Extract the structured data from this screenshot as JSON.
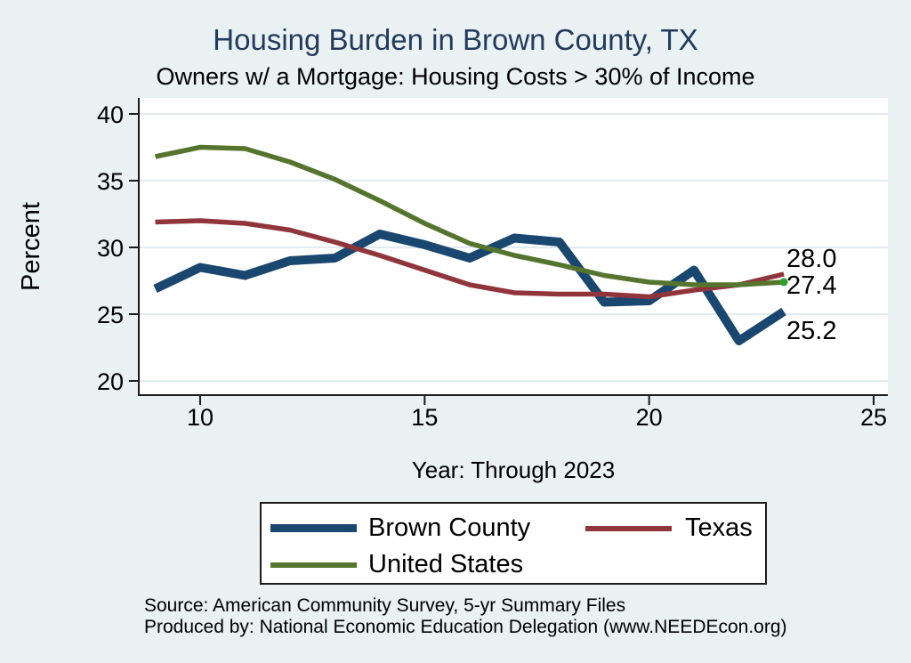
{
  "title": "Housing Burden in Brown County, TX",
  "subtitle": "Owners w/ a Mortgage: Housing Costs > 30% of Income",
  "ylabel": "Percent",
  "xlabel": "Year: Through 2023",
  "source": {
    "line1": "Source: American Community Survey, 5-yr Summary Files",
    "line2": "Produced by: National Economic Education Delegation (www.NEEDEcon.org)"
  },
  "legend": {
    "items": [
      {
        "label": "Brown County",
        "color": "#1a476f"
      },
      {
        "label": "Texas",
        "color": "#90353b"
      },
      {
        "label": "United States",
        "color": "#55752f"
      }
    ]
  },
  "colors": {
    "background": "#e9f1f3",
    "title": "#223a5e",
    "plot_background": "#ffffff",
    "gridline": "#e1ebef",
    "axis": "#1a1a1a",
    "brown_county": "#1a476f",
    "texas": "#90353b",
    "united_states": "#55752f",
    "end_marker": "#2e9e2e",
    "label_text": "#000000"
  },
  "chart_data": {
    "type": "line",
    "title": "Housing Burden in Brown County, TX",
    "subtitle": "Owners w/ a Mortgage: Housing Costs > 30% of Income",
    "xlabel": "Year: Through 2023",
    "ylabel": "Percent",
    "x": [
      9,
      10,
      11,
      12,
      13,
      14,
      15,
      16,
      17,
      18,
      19,
      20,
      21,
      22,
      23
    ],
    "x_ticks": [
      10,
      15,
      20,
      25
    ],
    "x_tick_labels": [
      "10",
      "15",
      "20",
      "25"
    ],
    "y_ticks": [
      20,
      25,
      30,
      35,
      40
    ],
    "y_tick_labels": [
      "20",
      "25",
      "30",
      "35",
      "40"
    ],
    "xlim": [
      8.6,
      25.3
    ],
    "ylim": [
      18.9,
      41.2
    ],
    "grid": true,
    "legend_position": "bottom",
    "series": [
      {
        "name": "Brown County",
        "color": "#1a476f",
        "values": [
          26.9,
          28.5,
          27.9,
          29.0,
          29.2,
          31.0,
          30.2,
          29.2,
          30.7,
          30.4,
          25.9,
          26.0,
          28.3,
          23.0,
          25.2
        ]
      },
      {
        "name": "Texas",
        "color": "#90353b",
        "values": [
          31.9,
          32.0,
          31.8,
          31.3,
          30.4,
          29.4,
          28.3,
          27.2,
          26.6,
          26.5,
          26.5,
          26.3,
          26.8,
          27.2,
          28.0
        ]
      },
      {
        "name": "United States",
        "color": "#55752f",
        "end_marker": true,
        "values": [
          36.8,
          37.5,
          37.4,
          36.4,
          35.1,
          33.5,
          31.8,
          30.3,
          29.4,
          28.7,
          27.9,
          27.4,
          27.2,
          27.2,
          27.4
        ]
      }
    ],
    "end_labels": [
      {
        "text": "28.0",
        "series": "Texas",
        "value": 28.0
      },
      {
        "text": "27.4",
        "series": "United States",
        "value": 27.4
      },
      {
        "text": "25.2",
        "series": "Brown County",
        "value": 25.2
      }
    ]
  }
}
